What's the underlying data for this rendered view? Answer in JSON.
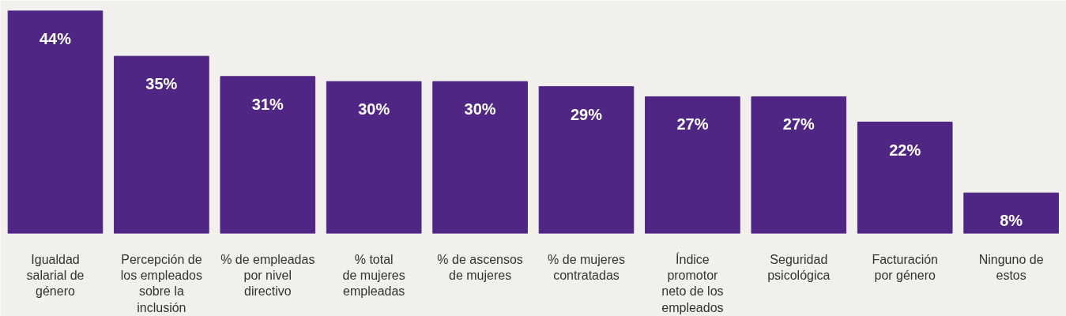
{
  "chart_data": {
    "type": "bar",
    "categories": [
      "Igualdad\nsalarial de\ngénero",
      "Percepción de\nlos empleados\nsobre la\ninclusión",
      "% de empleadas\npor nivel\ndirectivo",
      "% total\nde mujeres\nempleadas",
      "% de ascensos\nde mujeres",
      "% de mujeres\ncontratadas",
      "Índice\npromotor\nneto de los\nempleados",
      "Seguridad\npsicológica",
      "Facturación\npor género",
      "Ninguno de\nestos"
    ],
    "values": [
      44,
      35,
      31,
      30,
      30,
      29,
      27,
      27,
      22,
      8
    ],
    "value_labels": [
      "44%",
      "35%",
      "31%",
      "30%",
      "30%",
      "29%",
      "27%",
      "27%",
      "22%",
      "8%"
    ],
    "color": "#4f2683",
    "grid": false
  }
}
